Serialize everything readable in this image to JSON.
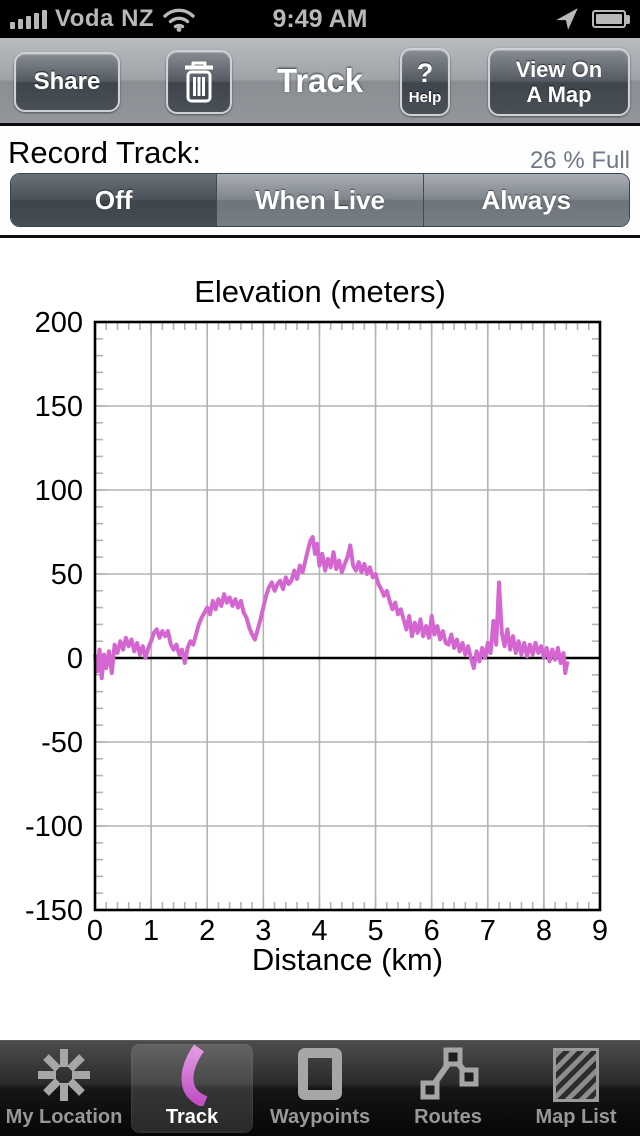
{
  "status_bar": {
    "carrier": "Voda NZ",
    "time": "9:49 AM"
  },
  "nav_bar": {
    "share_label": "Share",
    "title": "Track",
    "help_q": "?",
    "help_label": "Help",
    "view_map_line1": "View On",
    "view_map_line2": "A Map"
  },
  "record": {
    "label": "Record Track:",
    "capacity": "26 % Full",
    "segments": [
      "Off",
      "When Live",
      "Always"
    ],
    "selected_segment": "Off"
  },
  "chart_data": {
    "type": "line",
    "title": "Elevation (meters)",
    "xlabel": "Distance (km)",
    "xlim": [
      0,
      9
    ],
    "ylim": [
      -150,
      200
    ],
    "x_major": 1,
    "x_minor": 0.2,
    "y_major": 50,
    "y_minor": 10,
    "grid": true,
    "line_color": "#d565d0",
    "grid_color": "#b3b3b3",
    "zero_line_color": "#000000",
    "series": [
      {
        "name": "Elevation",
        "points": [
          [
            0,
            2
          ],
          [
            0.04,
            -8
          ],
          [
            0.08,
            5
          ],
          [
            0.12,
            -12
          ],
          [
            0.16,
            2
          ],
          [
            0.2,
            -6
          ],
          [
            0.25,
            4
          ],
          [
            0.3,
            -9
          ],
          [
            0.35,
            8
          ],
          [
            0.4,
            3
          ],
          [
            0.45,
            10
          ],
          [
            0.5,
            5
          ],
          [
            0.55,
            12
          ],
          [
            0.6,
            7
          ],
          [
            0.65,
            11
          ],
          [
            0.7,
            4
          ],
          [
            0.75,
            9
          ],
          [
            0.8,
            2
          ],
          [
            0.85,
            7
          ],
          [
            0.9,
            0
          ],
          [
            0.95,
            6
          ],
          [
            1,
            10
          ],
          [
            1.05,
            15
          ],
          [
            1.1,
            17
          ],
          [
            1.15,
            12
          ],
          [
            1.2,
            16
          ],
          [
            1.25,
            13
          ],
          [
            1.3,
            16
          ],
          [
            1.35,
            8
          ],
          [
            1.4,
            5
          ],
          [
            1.45,
            8
          ],
          [
            1.5,
            2
          ],
          [
            1.55,
            5
          ],
          [
            1.6,
            -3
          ],
          [
            1.65,
            6
          ],
          [
            1.7,
            10
          ],
          [
            1.75,
            8
          ],
          [
            1.8,
            14
          ],
          [
            1.85,
            20
          ],
          [
            1.9,
            24
          ],
          [
            1.95,
            27
          ],
          [
            2,
            30
          ],
          [
            2.05,
            26
          ],
          [
            2.1,
            34
          ],
          [
            2.15,
            29
          ],
          [
            2.2,
            35
          ],
          [
            2.25,
            31
          ],
          [
            2.3,
            38
          ],
          [
            2.35,
            33
          ],
          [
            2.4,
            36
          ],
          [
            2.45,
            31
          ],
          [
            2.5,
            35
          ],
          [
            2.55,
            30
          ],
          [
            2.6,
            34
          ],
          [
            2.65,
            27
          ],
          [
            2.7,
            24
          ],
          [
            2.75,
            18
          ],
          [
            2.8,
            14
          ],
          [
            2.85,
            11
          ],
          [
            2.9,
            17
          ],
          [
            2.95,
            23
          ],
          [
            3,
            30
          ],
          [
            3.05,
            37
          ],
          [
            3.1,
            42
          ],
          [
            3.15,
            45
          ],
          [
            3.2,
            40
          ],
          [
            3.25,
            44
          ],
          [
            3.3,
            46
          ],
          [
            3.35,
            41
          ],
          [
            3.4,
            48
          ],
          [
            3.45,
            44
          ],
          [
            3.5,
            46
          ],
          [
            3.55,
            52
          ],
          [
            3.6,
            47
          ],
          [
            3.65,
            55
          ],
          [
            3.7,
            51
          ],
          [
            3.75,
            58
          ],
          [
            3.8,
            65
          ],
          [
            3.84,
            70
          ],
          [
            3.88,
            72
          ],
          [
            3.92,
            62
          ],
          [
            3.96,
            68
          ],
          [
            4,
            55
          ],
          [
            4.05,
            62
          ],
          [
            4.1,
            52
          ],
          [
            4.15,
            59
          ],
          [
            4.2,
            54
          ],
          [
            4.25,
            63
          ],
          [
            4.3,
            53
          ],
          [
            4.35,
            58
          ],
          [
            4.4,
            51
          ],
          [
            4.45,
            56
          ],
          [
            4.5,
            60
          ],
          [
            4.55,
            67
          ],
          [
            4.6,
            55
          ],
          [
            4.65,
            52
          ],
          [
            4.7,
            57
          ],
          [
            4.75,
            51
          ],
          [
            4.8,
            56
          ],
          [
            4.85,
            50
          ],
          [
            4.9,
            54
          ],
          [
            4.95,
            48
          ],
          [
            5,
            50
          ],
          [
            5.05,
            44
          ],
          [
            5.1,
            41
          ],
          [
            5.15,
            37
          ],
          [
            5.2,
            40
          ],
          [
            5.25,
            34
          ],
          [
            5.3,
            29
          ],
          [
            5.35,
            33
          ],
          [
            5.4,
            26
          ],
          [
            5.45,
            29
          ],
          [
            5.5,
            23
          ],
          [
            5.55,
            17
          ],
          [
            5.6,
            25
          ],
          [
            5.65,
            13
          ],
          [
            5.7,
            21
          ],
          [
            5.75,
            15
          ],
          [
            5.8,
            23
          ],
          [
            5.85,
            13
          ],
          [
            5.9,
            19
          ],
          [
            5.95,
            12
          ],
          [
            6,
            25
          ],
          [
            6.05,
            14
          ],
          [
            6.1,
            19
          ],
          [
            6.15,
            11
          ],
          [
            6.2,
            16
          ],
          [
            6.25,
            9
          ],
          [
            6.3,
            8
          ],
          [
            6.35,
            14
          ],
          [
            6.4,
            6
          ],
          [
            6.45,
            11
          ],
          [
            6.5,
            4
          ],
          [
            6.55,
            9
          ],
          [
            6.6,
            2
          ],
          [
            6.65,
            7
          ],
          [
            6.7,
            0
          ],
          [
            6.75,
            -6
          ],
          [
            6.8,
            4
          ],
          [
            6.85,
            -2
          ],
          [
            6.9,
            6
          ],
          [
            6.95,
            0
          ],
          [
            7,
            9
          ],
          [
            7.05,
            3
          ],
          [
            7.1,
            22
          ],
          [
            7.15,
            8
          ],
          [
            7.2,
            45
          ],
          [
            7.25,
            15
          ],
          [
            7.3,
            7
          ],
          [
            7.35,
            17
          ],
          [
            7.4,
            5
          ],
          [
            7.45,
            13
          ],
          [
            7.5,
            3
          ],
          [
            7.55,
            10
          ],
          [
            7.6,
            2
          ],
          [
            7.65,
            9
          ],
          [
            7.7,
            1
          ],
          [
            7.75,
            8
          ],
          [
            7.8,
            2
          ],
          [
            7.85,
            9
          ],
          [
            7.9,
            3
          ],
          [
            7.95,
            7
          ],
          [
            8,
            0
          ],
          [
            8.05,
            6
          ],
          [
            8.1,
            -2
          ],
          [
            8.15,
            5
          ],
          [
            8.2,
            -1
          ],
          [
            8.25,
            6
          ],
          [
            8.3,
            -3
          ],
          [
            8.35,
            3
          ],
          [
            8.38,
            -9
          ],
          [
            8.42,
            -2
          ]
        ]
      }
    ]
  },
  "tab_bar": {
    "items": [
      {
        "label": "My Location",
        "icon": "asterisk-icon",
        "selected": false
      },
      {
        "label": "Track",
        "icon": "track-icon",
        "selected": true
      },
      {
        "label": "Waypoints",
        "icon": "square-icon",
        "selected": false
      },
      {
        "label": "Routes",
        "icon": "routes-icon",
        "selected": false
      },
      {
        "label": "Map List",
        "icon": "map-icon",
        "selected": false
      }
    ]
  }
}
